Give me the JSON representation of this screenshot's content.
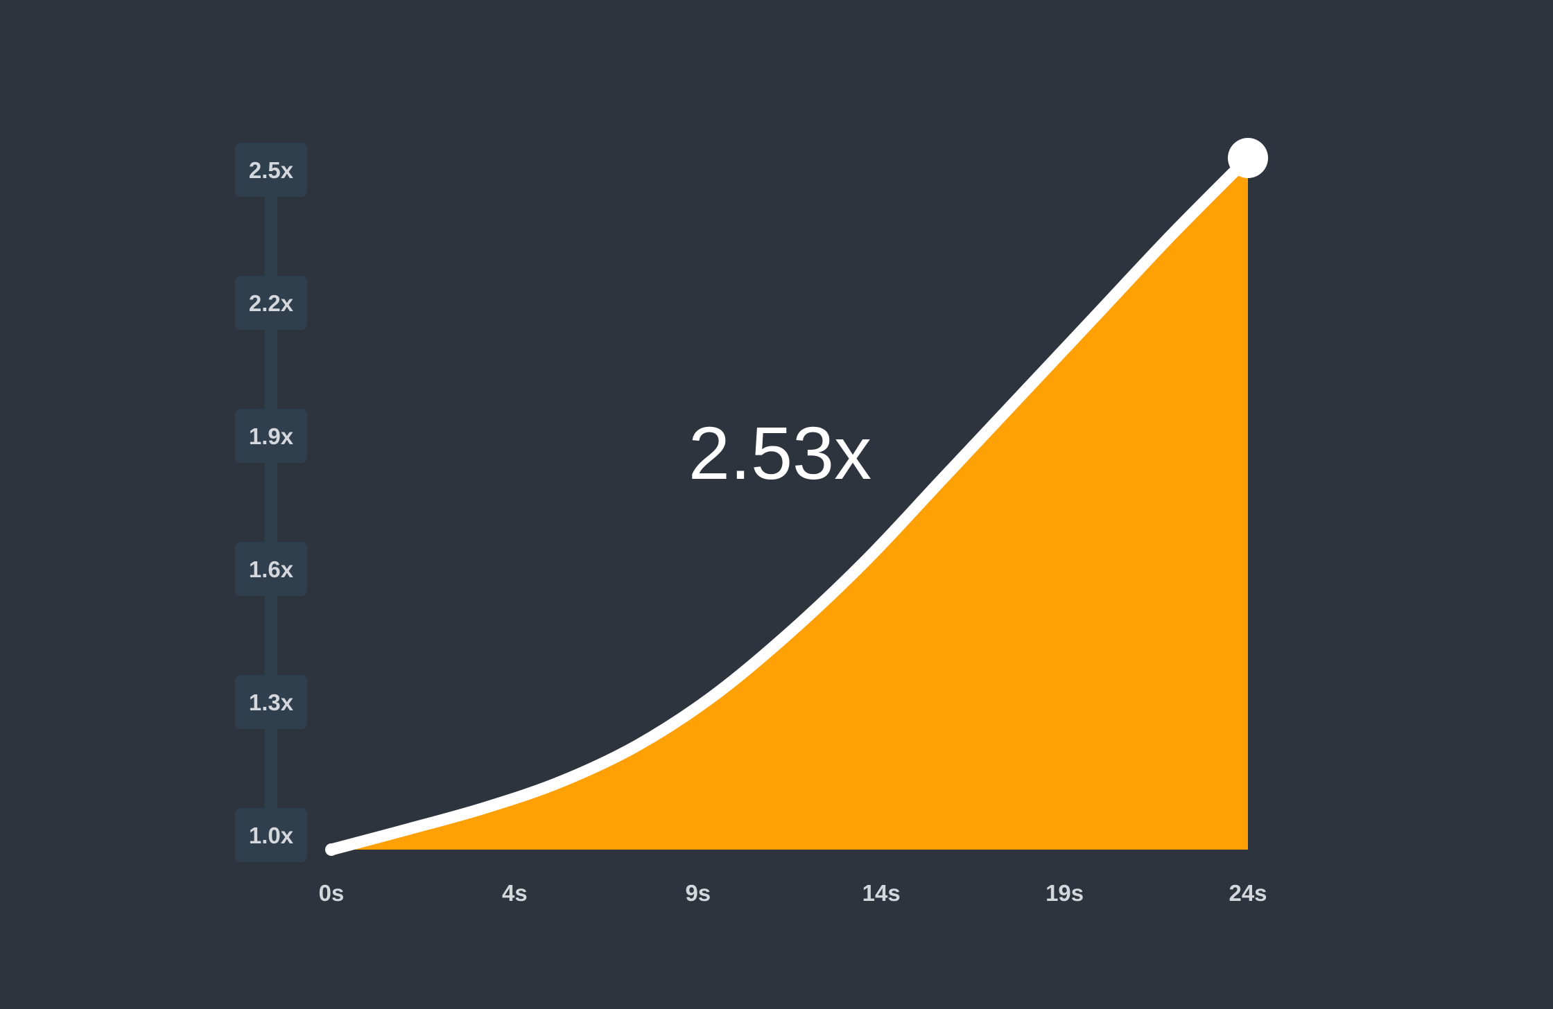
{
  "colors": {
    "background": "#2d343e",
    "area_fill": "#ffa005",
    "line": "#ffffff",
    "axis_badge": "#2f3f4e",
    "tick_text": "#d4d7dc"
  },
  "readout": {
    "value_label": "2.53x"
  },
  "chart_data": {
    "type": "area",
    "x_ticks": [
      {
        "value": 0,
        "label": "0s"
      },
      {
        "value": 4,
        "label": "4s"
      },
      {
        "value": 9,
        "label": "9s"
      },
      {
        "value": 14,
        "label": "14s"
      },
      {
        "value": 19,
        "label": "19s"
      },
      {
        "value": 24,
        "label": "24s"
      }
    ],
    "y_ticks": [
      {
        "value": 1.0,
        "label": "1.0x"
      },
      {
        "value": 1.3,
        "label": "1.3x"
      },
      {
        "value": 1.6,
        "label": "1.6x"
      },
      {
        "value": 1.9,
        "label": "1.9x"
      },
      {
        "value": 2.2,
        "label": "2.2x"
      },
      {
        "value": 2.5,
        "label": "2.5x"
      }
    ],
    "xlim": [
      0,
      24
    ],
    "ylim": [
      1.0,
      2.5
    ],
    "grid": false,
    "series": [
      {
        "x": [
          0,
          2,
          4,
          6,
          8,
          10,
          12,
          14,
          16,
          18,
          20,
          22,
          24
        ],
        "y": [
          1.0,
          1.045,
          1.092,
          1.15,
          1.23,
          1.34,
          1.48,
          1.64,
          1.82,
          2.0,
          2.18,
          2.36,
          2.53
        ]
      }
    ],
    "endpoint": {
      "x": 24,
      "y": 2.53
    }
  }
}
